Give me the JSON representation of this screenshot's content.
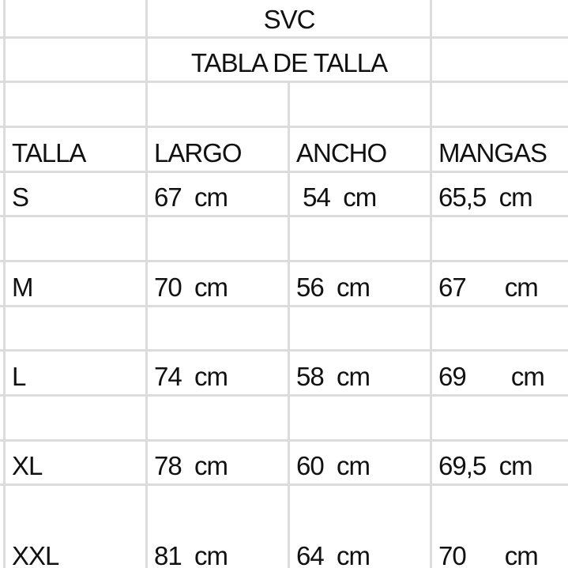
{
  "sheet": {
    "title": "SVC",
    "subtitle": "TABLA DE TALLA",
    "headers": [
      "TALLA",
      "LARGO",
      "ANCHO",
      "MANGAS"
    ],
    "rows": [
      [
        "S",
        "67  cm",
        " 54  cm",
        "65,5  cm"
      ],
      [
        "M",
        "70  cm",
        "56  cm",
        "67      cm"
      ],
      [
        "L",
        "74  cm",
        "58  cm",
        "69       cm"
      ],
      [
        "XL",
        "78  cm",
        "60  cm",
        "69,5  cm"
      ],
      [
        "XXL",
        "81  cm",
        "64  cm",
        "70      cm"
      ]
    ],
    "gridline_color": "#dcdcdc"
  }
}
